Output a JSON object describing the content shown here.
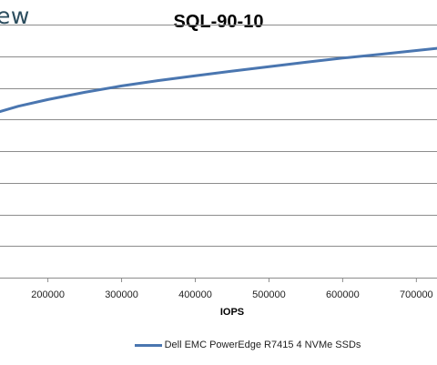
{
  "logo_text": "ew",
  "chart_data": {
    "type": "line",
    "title": "SQL-90-10",
    "xlabel": "IOPS",
    "ylabel": "",
    "x_ticks": [
      200000,
      300000,
      400000,
      500000,
      600000,
      700000
    ],
    "x_tick_labels": [
      "200000",
      "300000",
      "400000",
      "500000",
      "600000",
      "700000"
    ],
    "xlim": [
      135000,
      728000
    ],
    "ylim": [
      0,
      8
    ],
    "y_gridlines": [
      1,
      2,
      3,
      4,
      5,
      6,
      7,
      8
    ],
    "grid": "horizontal",
    "legend_position": "bottom",
    "series": [
      {
        "name": "Dell EMC PowerEdge R7415 4 NVMe SSDs",
        "color": "#4a76b0",
        "x": [
          135000,
          160000,
          200000,
          250000,
          300000,
          350000,
          400000,
          450000,
          500000,
          550000,
          600000,
          650000,
          700000,
          728000
        ],
        "y": [
          5.25,
          5.42,
          5.63,
          5.86,
          6.06,
          6.23,
          6.38,
          6.53,
          6.67,
          6.81,
          6.94,
          7.06,
          7.18,
          7.25
        ]
      }
    ]
  }
}
